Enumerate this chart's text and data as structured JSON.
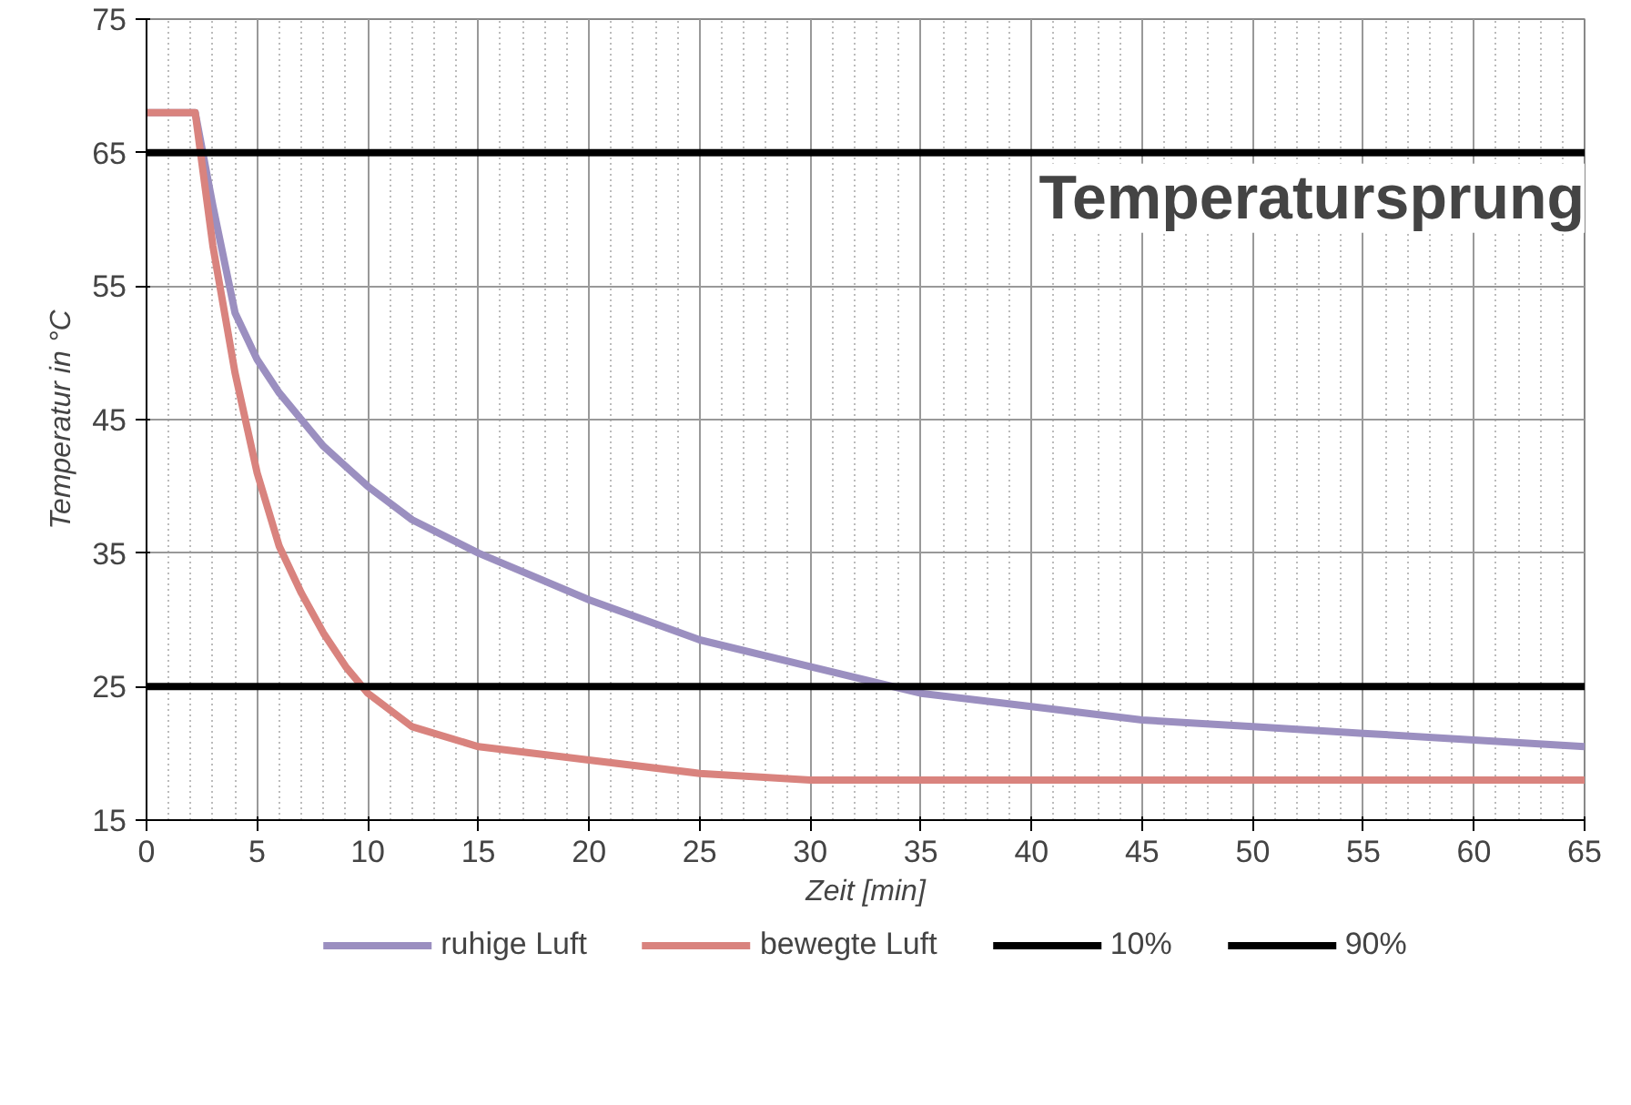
{
  "chart_data": {
    "type": "line",
    "annotations": [
      "Temperatursprung"
    ],
    "xlabel": "Zeit [min]",
    "ylabel": "Temperatur in °C",
    "xlim": [
      0,
      65
    ],
    "xticks": [
      0,
      5,
      10,
      15,
      20,
      25,
      30,
      35,
      40,
      45,
      50,
      55,
      60,
      65
    ],
    "ylim": [
      15,
      75
    ],
    "yticks": [
      15,
      25,
      35,
      45,
      55,
      65,
      75
    ],
    "grid": true,
    "legend": "bottom",
    "marker": "none",
    "line_style": "solid",
    "series": [
      {
        "name": "ruhige Luft",
        "color": "#9b8fc0",
        "x": [
          0,
          1,
          2.2,
          3,
          4,
          5,
          6,
          7,
          8,
          10,
          12,
          15,
          20,
          25,
          30,
          35,
          40,
          45,
          50,
          55,
          60,
          65
        ],
        "values": [
          68,
          68,
          68,
          61,
          53,
          49.5,
          47,
          45,
          43,
          40,
          37.5,
          35,
          31.5,
          28.5,
          26.5,
          24.5,
          23.5,
          22.5,
          22,
          21.5,
          21,
          20.5
        ]
      },
      {
        "name": "bewegte Luft",
        "color": "#d9837e",
        "x": [
          0,
          1,
          2.2,
          3,
          4,
          5,
          6,
          7,
          8,
          9,
          10,
          12,
          15,
          20,
          25,
          30,
          40,
          50,
          65
        ],
        "values": [
          68,
          68,
          68,
          58,
          48.5,
          41,
          35.5,
          32,
          29,
          26.5,
          24.5,
          22,
          20.5,
          19.5,
          18.5,
          18,
          18,
          18,
          18
        ]
      },
      {
        "name": "10%",
        "color": "#000000",
        "x": [
          0,
          65
        ],
        "values": [
          65,
          65
        ]
      },
      {
        "name": "90%",
        "color": "#000000",
        "x": [
          0,
          65
        ],
        "values": [
          25,
          25
        ]
      }
    ]
  }
}
